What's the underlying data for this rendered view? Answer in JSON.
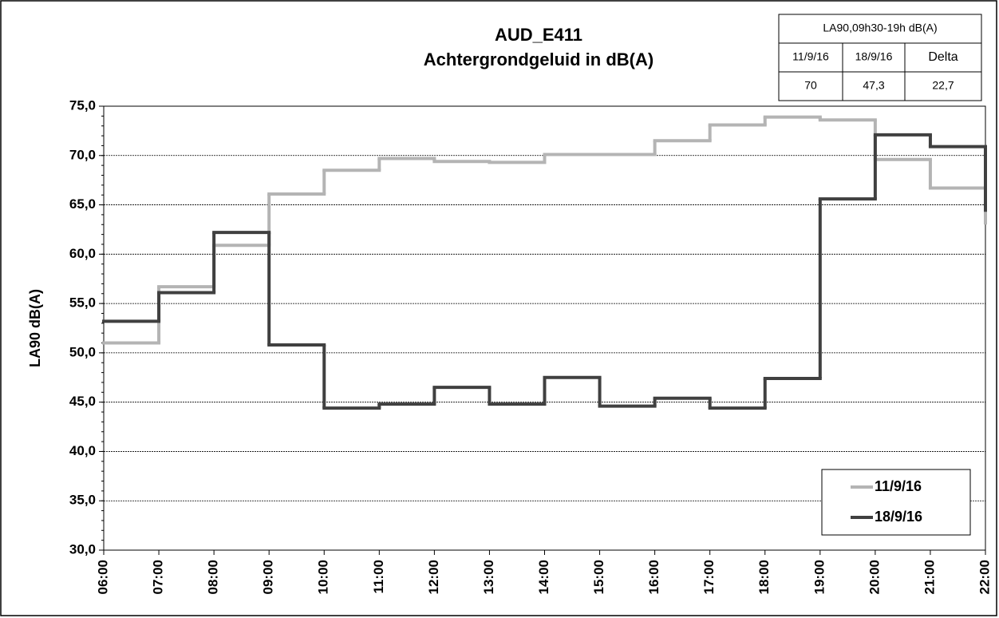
{
  "chart_data": {
    "type": "step",
    "step": "post",
    "title": "AUD_E411",
    "subtitle": "Achtergrondgeluid  in dB(A)",
    "y_label": "LA90 dB(A)",
    "categories": [
      "06:00",
      "07:00",
      "08:00",
      "09:00",
      "10:00",
      "11:00",
      "12:00",
      "13:00",
      "14:00",
      "15:00",
      "16:00",
      "17:00",
      "18:00",
      "19:00",
      "20:00",
      "21:00",
      "22:00"
    ],
    "series": [
      {
        "name": "11/9/16",
        "color": "#b4b4b4",
        "values": [
          51.0,
          56.7,
          60.9,
          66.1,
          68.5,
          69.7,
          69.4,
          69.3,
          70.1,
          70.1,
          71.5,
          73.1,
          73.9,
          73.6,
          69.6,
          66.7,
          63.0
        ]
      },
      {
        "name": "18/9/16",
        "color": "#404040",
        "values": [
          53.2,
          56.1,
          62.2,
          50.8,
          44.4,
          44.8,
          46.5,
          44.8,
          47.5,
          44.6,
          45.4,
          44.4,
          47.4,
          65.6,
          72.1,
          70.9,
          64.3
        ]
      }
    ],
    "ylim": [
      30,
      75
    ],
    "yticks": [
      {
        "value": 30,
        "label": "30,0"
      },
      {
        "value": 35,
        "label": "35,0"
      },
      {
        "value": 40,
        "label": "40,0"
      },
      {
        "value": 45,
        "label": "45,0"
      },
      {
        "value": 50,
        "label": "50,0"
      },
      {
        "value": 55,
        "label": "55,0"
      },
      {
        "value": 60,
        "label": "60,0"
      },
      {
        "value": 65,
        "label": "65,0"
      },
      {
        "value": 70,
        "label": "70,0"
      },
      {
        "value": 75,
        "label": "75,0"
      }
    ],
    "grid": true,
    "legend": "bottom-right",
    "table": {
      "title": "LA90,09h30-19h dB(A)",
      "columns": [
        "11/9/16",
        "18/9/16",
        "Delta"
      ],
      "cells": [
        "70",
        "47,3",
        "22,7"
      ]
    }
  }
}
